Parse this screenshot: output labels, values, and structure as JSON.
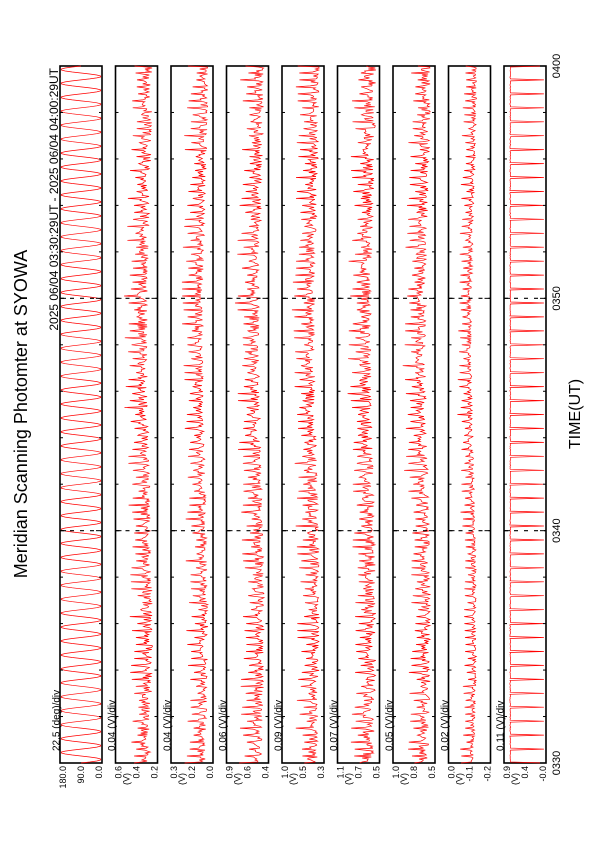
{
  "figure": {
    "title": "Meridian Scanning Photomter at SYOWA",
    "time_range": "2025 06/04 03:30:29UT - 2025 06/04 04:00:29UT",
    "xlabel": "TIME(UT)"
  },
  "chart_data": {
    "type": "line",
    "orientation": "rotated-90-ccw",
    "x_unit": "UT",
    "xlim": [
      "0330",
      "0400"
    ],
    "x_ticks": [
      "0330",
      "0340",
      "0350",
      "0400"
    ],
    "line_color": "#ff0000",
    "panels": [
      {
        "scale": "22.5 (deg)/div",
        "yticks": [
          "180.0",
          "90.0",
          "0.0"
        ],
        "ylabel": "",
        "pattern": "scan",
        "level": 0.5,
        "amp": 0.48,
        "spike": 0.0,
        "noise": 0.0,
        "seed": 1
      },
      {
        "scale": "0.04 (V)/div",
        "yticks": [
          "0.6",
          "0.4",
          "0.2"
        ],
        "ylabel": "(V)",
        "pattern": "spiky",
        "level": 0.7,
        "amp": 0.12,
        "spike": 0.35,
        "noise": 0.05,
        "seed": 2
      },
      {
        "scale": "0.04 (V)/div",
        "yticks": [
          "0.3",
          "0.2",
          "0.0"
        ],
        "ylabel": "(V)",
        "pattern": "spiky",
        "level": 0.72,
        "amp": 0.1,
        "spike": 0.35,
        "noise": 0.05,
        "seed": 3
      },
      {
        "scale": "0.06 (V)/div",
        "yticks": [
          "0.9",
          "0.6",
          "0.4"
        ],
        "ylabel": "(V)",
        "pattern": "spiky",
        "level": 0.72,
        "amp": 0.12,
        "spike": 0.35,
        "noise": 0.05,
        "seed": 4
      },
      {
        "scale": "0.09 (V)/div",
        "yticks": [
          "1.0",
          "0.5",
          "0.3"
        ],
        "ylabel": "(V)",
        "pattern": "spiky",
        "level": 0.72,
        "amp": 0.12,
        "spike": 0.35,
        "noise": 0.05,
        "seed": 5
      },
      {
        "scale": "0.07 (V)/div",
        "yticks": [
          "1.1",
          "0.7",
          "0.5"
        ],
        "ylabel": "(V)",
        "pattern": "spiky",
        "level": 0.72,
        "amp": 0.14,
        "spike": 0.35,
        "noise": 0.05,
        "seed": 6
      },
      {
        "scale": "0.05 (V)/div",
        "yticks": [
          "1.0",
          "0.8",
          "0.5"
        ],
        "ylabel": "(V)",
        "pattern": "spiky",
        "level": 0.72,
        "amp": 0.12,
        "spike": 0.35,
        "noise": 0.05,
        "seed": 7
      },
      {
        "scale": "0.02 (V)/div",
        "yticks": [
          "0.0",
          "-0.1",
          "-0.2"
        ],
        "ylabel": "(V)",
        "pattern": "spiky",
        "level": 0.55,
        "amp": 0.06,
        "spike": 0.25,
        "noise": 0.02,
        "seed": 8
      },
      {
        "scale": "0.11 (V)/div",
        "yticks": [
          "0.9",
          "0.4",
          "-0.0"
        ],
        "ylabel": "(V)",
        "pattern": "pulses",
        "level": 0.15,
        "amp": 0.03,
        "spike": 0.8,
        "noise": 0.01,
        "seed": 9
      }
    ]
  }
}
